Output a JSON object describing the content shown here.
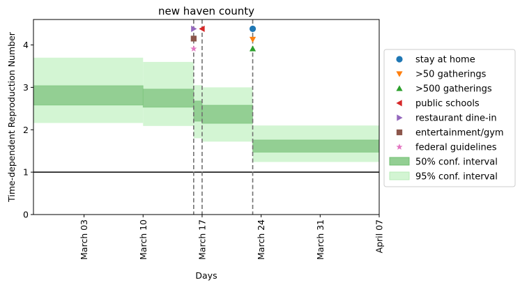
{
  "chart_data": {
    "type": "area",
    "title": "new haven county",
    "xlabel": "Days",
    "ylabel": "Time-dependent Reproduction Number",
    "x_range": [
      "2020-02-26",
      "2020-04-07"
    ],
    "ylim": [
      0,
      4.6
    ],
    "x_ticks": [
      {
        "date": "2020-03-03",
        "label": "March 03"
      },
      {
        "date": "2020-03-10",
        "label": "March 10"
      },
      {
        "date": "2020-03-17",
        "label": "March 17"
      },
      {
        "date": "2020-03-24",
        "label": "March 24"
      },
      {
        "date": "2020-03-31",
        "label": "March 31"
      },
      {
        "date": "2020-04-07",
        "label": "April 07"
      }
    ],
    "y_ticks": [
      0,
      1,
      2,
      3,
      4
    ],
    "reference_line": 1,
    "conf_50": [
      {
        "start": "2020-02-26",
        "end": "2020-03-10",
        "low": 2.58,
        "high": 3.04
      },
      {
        "start": "2020-03-10",
        "end": "2020-03-16",
        "low": 2.53,
        "high": 2.96
      },
      {
        "start": "2020-03-16",
        "end": "2020-03-17",
        "low": 2.2,
        "high": 2.68
      },
      {
        "start": "2020-03-17",
        "end": "2020-03-23",
        "low": 2.15,
        "high": 2.58
      },
      {
        "start": "2020-03-23",
        "end": "2020-04-07",
        "low": 1.47,
        "high": 1.76
      }
    ],
    "conf_95": [
      {
        "start": "2020-02-26",
        "end": "2020-03-10",
        "low": 2.16,
        "high": 3.7
      },
      {
        "start": "2020-03-10",
        "end": "2020-03-16",
        "low": 2.09,
        "high": 3.6
      },
      {
        "start": "2020-03-16",
        "end": "2020-03-17",
        "low": 1.8,
        "high": 3.05
      },
      {
        "start": "2020-03-17",
        "end": "2020-03-23",
        "low": 1.72,
        "high": 3.0
      },
      {
        "start": "2020-03-23",
        "end": "2020-04-07",
        "low": 1.24,
        "high": 2.1
      }
    ],
    "interventions": [
      {
        "name": "stay at home",
        "date": "2020-03-23",
        "y": 4.38,
        "marker": "circle",
        "color": "#1f77b4"
      },
      {
        "name": ">50 gatherings",
        "date": "2020-03-23",
        "y": 4.13,
        "marker": "triangle-down",
        "color": "#ff7f0e"
      },
      {
        "name": ">500 gatherings",
        "date": "2020-03-23",
        "y": 3.91,
        "marker": "triangle-up",
        "color": "#2ca02c"
      },
      {
        "name": "public schools",
        "date": "2020-03-17",
        "y": 4.38,
        "marker": "triangle-left",
        "color": "#d62728"
      },
      {
        "name": "restaurant dine-in",
        "date": "2020-03-16",
        "y": 4.38,
        "marker": "triangle-right",
        "color": "#9467bd"
      },
      {
        "name": "entertainment/gym",
        "date": "2020-03-16",
        "y": 4.15,
        "marker": "square",
        "color": "#8c564b"
      },
      {
        "name": "federal guidelines",
        "date": "2020-03-16",
        "y": 3.91,
        "marker": "star",
        "color": "#e377c2"
      }
    ],
    "vertical_lines": [
      "2020-03-16",
      "2020-03-17",
      "2020-03-23"
    ],
    "legend": {
      "placement": "center-right",
      "entries": [
        {
          "label": "stay at home",
          "marker": "circle",
          "color": "#1f77b4"
        },
        {
          "label": ">50 gatherings",
          "marker": "triangle-down",
          "color": "#ff7f0e"
        },
        {
          "label": ">500 gatherings",
          "marker": "triangle-up",
          "color": "#2ca02c"
        },
        {
          "label": "public schools",
          "marker": "triangle-left",
          "color": "#d62728"
        },
        {
          "label": "restaurant dine-in",
          "marker": "triangle-right",
          "color": "#9467bd"
        },
        {
          "label": "entertainment/gym",
          "marker": "square",
          "color": "#8c564b"
        },
        {
          "label": "federal guidelines",
          "marker": "star",
          "color": "#e377c2"
        },
        {
          "label": "50% conf. interval",
          "marker": "patch",
          "color": "#93cf93"
        },
        {
          "label": "95% conf. interval",
          "marker": "patch",
          "color": "#d3f5d3"
        }
      ]
    },
    "colors": {
      "conf_50_fill": "#93cf93",
      "conf_50_edge": "#6fbf6f",
      "conf_95_fill": "#d3f5d3",
      "reference_line": "#000000",
      "vertical_line": "#707070"
    }
  }
}
